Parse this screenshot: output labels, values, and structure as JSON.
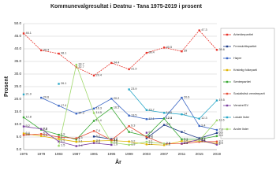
{
  "chart_data": {
    "type": "line",
    "title": "Kommunevalgresultat i Deatnu - Tana 1975-2019 i prosent",
    "x_label": "År",
    "y_label": "Prosent",
    "categories": [
      "1975",
      "1979",
      "1983",
      "1987",
      "1991",
      "1995",
      "1999",
      "2003",
      "2007",
      "2011",
      "2015",
      "2019"
    ],
    "ylim": [
      0,
      50
    ],
    "yticks": [
      {
        "value": 0,
        "label": "0.0"
      },
      {
        "value": 5,
        "label": "5.0"
      },
      {
        "value": 10,
        "label": "10.0"
      },
      {
        "value": 15,
        "label": "15.0"
      },
      {
        "value": 20,
        "label": "20.0"
      },
      {
        "value": 25,
        "label": "25.0"
      },
      {
        "value": 30,
        "label": "30.0"
      },
      {
        "value": 35,
        "label": "35.0"
      },
      {
        "value": 40,
        "label": "40.0"
      },
      {
        "value": 45,
        "label": "45.0"
      },
      {
        "value": 50,
        "label": "50.0"
      }
    ],
    "grid": true,
    "series": [
      {
        "name": "Arbeiderpartiet",
        "color": "#e8332a",
        "values": [
          46.1,
          39.4,
          38.1,
          32.7,
          29.4,
          34.4,
          31.9,
          38.4,
          40.5,
          39.0,
          47.3,
          39.6
        ]
      },
      {
        "name": "Fremskrittspartiet",
        "color": "#1f3c88",
        "values": [
          null,
          null,
          null,
          null,
          5.2,
          4.2,
          null,
          4.5,
          9.8,
          7.0,
          4.5,
          6.6
        ]
      },
      {
        "name": "Høyre",
        "color": "#3a66c4",
        "values": [
          null,
          20.6,
          17.4,
          14.3,
          16.3,
          20.2,
          13.5,
          12.1,
          12.4,
          20.6,
          9.4,
          7.8
        ]
      },
      {
        "name": "Kristelig folkeparti",
        "color": "#e0b400",
        "values": [
          6.4,
          5.4,
          4.2,
          3.1,
          3.4,
          3.6,
          3.2,
          2.1,
          1.8,
          3.4,
          3.4,
          2.4
        ]
      },
      {
        "name": "Senterpartiet",
        "color": "#3aa935",
        "values": [
          12.8,
          7.9,
          5.9,
          4.0,
          11.4,
          16.5,
          7.0,
          5.3,
          12.3,
          4.1,
          4.1,
          5.4
        ]
      },
      {
        "name": "Sosialistisk venstreparti",
        "color": "#e5503a",
        "values": [
          5.8,
          6.2,
          5.0,
          4.5,
          7.4,
          3.8,
          9.3,
          5.0,
          2.3,
          2.3,
          3.1,
          3.2
        ]
      },
      {
        "name": "Venstre/SV",
        "color": "#7b3fa0",
        "values": [
          9.2,
          8.2,
          3.2,
          1.4,
          2.6,
          1.9,
          null,
          6.7,
          null,
          2.4,
          4.0,
          2.0
        ]
      },
      {
        "name": "Lokale lister",
        "color": "#2aa8c8",
        "values": [
          21.9,
          null,
          26.1,
          null,
          null,
          null,
          23.9,
          15.7,
          14.6,
          14.0,
          12.3,
          19.5
        ]
      },
      {
        "name": "Andre lister",
        "color": "#9fd86b",
        "values": [
          null,
          null,
          1.5,
          33.7,
          14.5,
          2.8,
          1.9,
          3.1,
          2.4,
          null,
          3.6,
          11.6
        ]
      }
    ]
  }
}
